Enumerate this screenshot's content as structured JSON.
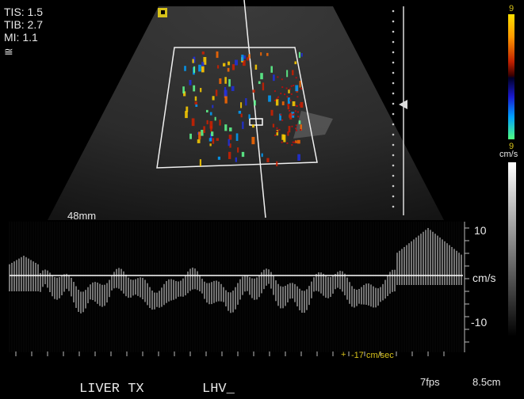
{
  "params": {
    "tis": "TIS: 1.5",
    "tib": "TIB: 2.7",
    "mi": "MI:  1.1",
    "wave_symbol": "≅"
  },
  "depth_label": "48mm",
  "colorbar": {
    "top": "9",
    "bottom": "9",
    "unit": "cm/s"
  },
  "spectral": {
    "scale_top": "10",
    "scale_unit": "cm/s",
    "scale_bottom": "-10",
    "cursor_readout": "-17 cm/sec"
  },
  "footer": {
    "exam": "LIVER TX",
    "vessel": "LHV_",
    "frame_rate": "7fps",
    "depth": "8.5cm"
  },
  "colors": {
    "accent_yellow": "#d7c21a",
    "trace": "#e8e8e8"
  }
}
